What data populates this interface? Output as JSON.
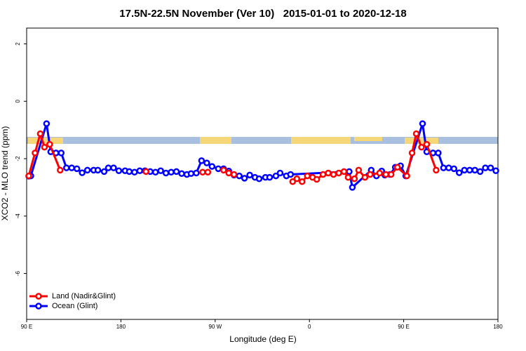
{
  "chart_data": {
    "type": "line",
    "title": "17.5N-22.5N November (Ver 10)   2015-01-01 to 2020-12-18",
    "x_label": "Longitude (deg E)",
    "y_label": "XCO2 - MLO trend (ppm)",
    "xlim": [
      90,
      540
    ],
    "xticks": [
      {
        "value": 90,
        "label": "90 E"
      },
      {
        "value": 180,
        "label": "180"
      },
      {
        "value": 270,
        "label": "90 W"
      },
      {
        "value": 360,
        "label": "0"
      },
      {
        "value": 450,
        "label": "90 E"
      },
      {
        "value": 540,
        "label": "180"
      }
    ],
    "ylim": [
      -7.6,
      2.55
    ],
    "yticks": [
      -6,
      -4,
      -2,
      0,
      2
    ],
    "legend": "bottom-left",
    "series": [
      {
        "name": "Ocean (Glint)",
        "color": "#0000ff",
        "x": [
          92,
          94,
          109,
          113,
          118,
          123,
          128,
          133,
          138,
          143,
          148,
          154,
          158,
          164,
          168,
          173,
          178,
          184,
          188,
          193,
          198,
          203,
          208,
          213,
          218,
          223,
          228,
          233,
          238,
          243,
          247,
          252,
          257,
          262,
          267,
          273,
          278,
          283,
          288,
          293,
          298,
          303,
          308,
          312,
          318,
          322,
          328,
          332,
          338,
          342,
          398,
          401,
          419,
          424,
          429,
          432,
          437,
          442,
          447,
          452,
          468,
          472,
          478,
          483,
          488,
          493,
          498,
          503,
          508,
          513,
          518,
          523,
          528,
          533,
          538
        ],
        "values": [
          -2.61,
          -2.6,
          -0.78,
          -1.76,
          -1.8,
          -1.8,
          -2.32,
          -2.32,
          -2.35,
          -2.49,
          -2.4,
          -2.4,
          -2.4,
          -2.45,
          -2.32,
          -2.32,
          -2.42,
          -2.42,
          -2.45,
          -2.47,
          -2.42,
          -2.42,
          -2.45,
          -2.47,
          -2.42,
          -2.5,
          -2.47,
          -2.45,
          -2.52,
          -2.55,
          -2.52,
          -2.5,
          -2.07,
          -2.15,
          -2.27,
          -2.35,
          -2.35,
          -2.43,
          -2.57,
          -2.6,
          -2.68,
          -2.57,
          -2.65,
          -2.7,
          -2.65,
          -2.65,
          -2.6,
          -2.5,
          -2.6,
          -2.55,
          -2.45,
          -3.0,
          -2.4,
          -2.6,
          -2.43,
          -2.57,
          -2.55,
          -2.3,
          -2.25,
          -2.6,
          -0.78,
          -1.76,
          -1.8,
          -1.8,
          -2.32,
          -2.32,
          -2.35,
          -2.49,
          -2.4,
          -2.4,
          -2.4,
          -2.45,
          -2.32,
          -2.32,
          -2.42
        ]
      },
      {
        "name": "Land (Nadir&Glint)",
        "color": "#ff0000",
        "x": [
          92,
          98,
          103,
          107,
          112,
          122,
          null,
          204,
          null,
          258,
          263,
          null,
          278,
          283,
          288,
          null,
          344,
          348,
          353,
          358,
          363,
          367,
          373,
          378,
          383,
          388,
          393,
          397,
          403,
          407,
          413,
          418,
          427,
          433,
          438,
          444,
          453,
          458,
          462,
          467,
          472,
          481
        ],
        "values": [
          -2.6,
          -1.8,
          -1.13,
          -1.6,
          -1.5,
          -2.4,
          null,
          -2.45,
          null,
          -2.47,
          -2.47,
          null,
          -2.4,
          -2.5,
          -2.55,
          null,
          -2.8,
          -2.7,
          -2.8,
          -2.6,
          -2.65,
          -2.72,
          -2.55,
          -2.5,
          -2.55,
          -2.5,
          -2.45,
          -2.65,
          -2.7,
          -2.4,
          -2.65,
          -2.55,
          -2.5,
          -2.55,
          -2.55,
          -2.3,
          -2.6,
          -1.8,
          -1.13,
          -1.6,
          -1.5,
          -2.4
        ]
      }
    ]
  }
}
